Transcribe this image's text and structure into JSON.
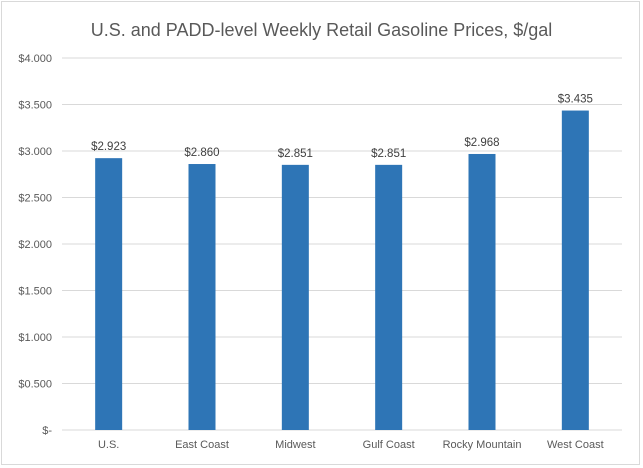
{
  "chart_data": {
    "type": "bar",
    "title": "U.S. and PADD-level Weekly Retail Gasoline Prices, $/gal",
    "xlabel": "",
    "ylabel": "",
    "categories": [
      "U.S.",
      "East Coast",
      "Midwest",
      "Gulf Coast",
      "Rocky Mountain",
      "West Coast"
    ],
    "values": [
      2.923,
      2.86,
      2.851,
      2.851,
      2.968,
      3.435
    ],
    "data_labels": [
      "$2.923",
      "$2.860",
      "$2.851",
      "$2.851",
      "$2.968",
      "$3.435"
    ],
    "ylim": [
      0,
      4.0
    ],
    "yticks": [
      0,
      0.5,
      1.0,
      1.5,
      2.0,
      2.5,
      3.0,
      3.5,
      4.0
    ],
    "ytick_labels": [
      "$-",
      "$0.500",
      "$1.000",
      "$1.500",
      "$2.000",
      "$2.500",
      "$3.000",
      "$3.500",
      "$4.000"
    ],
    "grid": true,
    "legend": "none",
    "bar_color": "#2e75b6",
    "grid_color": "#d9d9d9"
  }
}
